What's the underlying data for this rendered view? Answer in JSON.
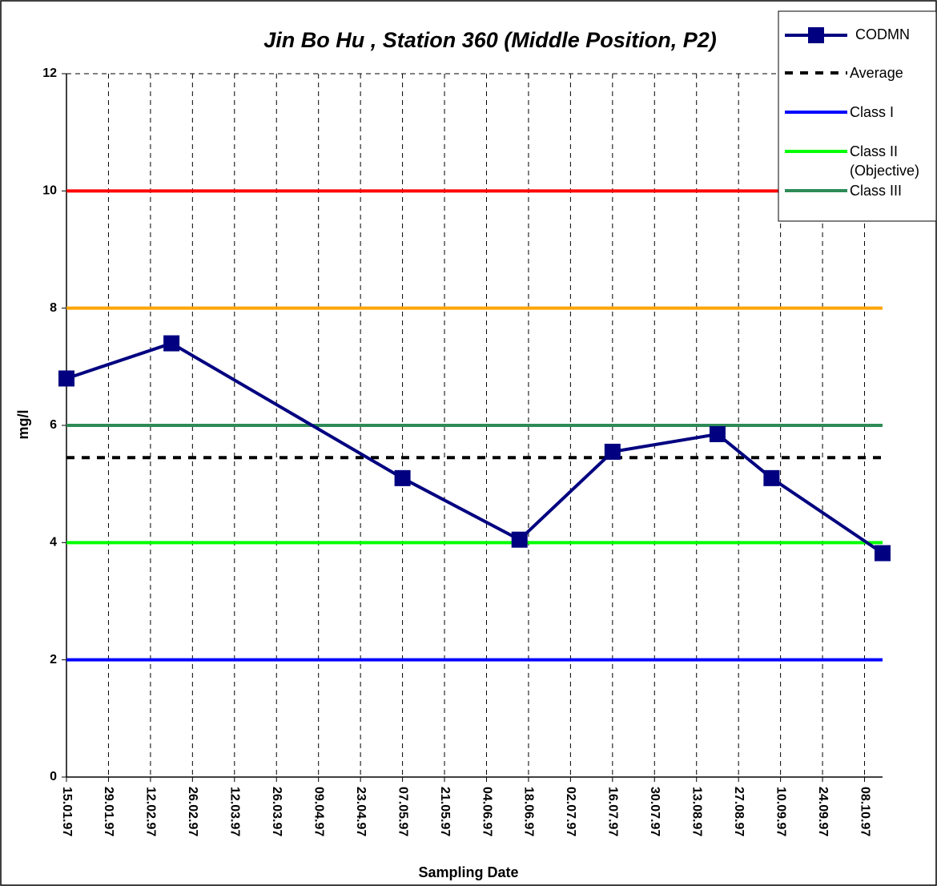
{
  "chart_data": {
    "type": "line",
    "title": "Jin Bo Hu , Station 360 (Middle Position, P2)",
    "x_label": "Sampling Date",
    "y_label": "mg/l",
    "x": [
      "15.01.97",
      "19.02.97",
      "07.05.97",
      "15.06.97",
      "16.07.97",
      "20.08.97",
      "07.09.97",
      "14.10.97"
    ],
    "series": [
      {
        "name": "CODMN",
        "color": "#000080",
        "values": [
          6.8,
          7.4,
          5.1,
          4.05,
          5.55,
          5.85,
          5.1,
          3.82
        ]
      }
    ],
    "reference_lines": [
      {
        "name": "Average",
        "value": 5.45,
        "color": "#000000",
        "dashed": true
      },
      {
        "name": "Class I",
        "value": 2,
        "color": "#0000ff"
      },
      {
        "name": "Class II (Objective)",
        "value": 4,
        "color": "#00ff00"
      },
      {
        "name": "Class III",
        "value": 6,
        "color": "#2e8b57"
      },
      {
        "value": 8,
        "color": "#ffa500"
      },
      {
        "value": 10,
        "color": "#ff0000"
      }
    ],
    "xlim": [
      "15.01.97",
      "14.10.97"
    ],
    "xticks": [
      "15.01.97",
      "29.01.97",
      "12.02.97",
      "26.02.97",
      "12.03.97",
      "26.03.97",
      "09.04.97",
      "23.04.97",
      "07.05.97",
      "21.05.97",
      "04.06.97",
      "18.06.97",
      "02.07.97",
      "16.07.97",
      "30.07.97",
      "13.08.97",
      "27.08.97",
      "10.09.97",
      "24.09.97",
      "08.10.97"
    ],
    "ylim": [
      0,
      12
    ],
    "yticks": [
      0,
      2,
      4,
      6,
      8,
      10,
      12
    ],
    "grid": true,
    "legend": "top-right"
  }
}
